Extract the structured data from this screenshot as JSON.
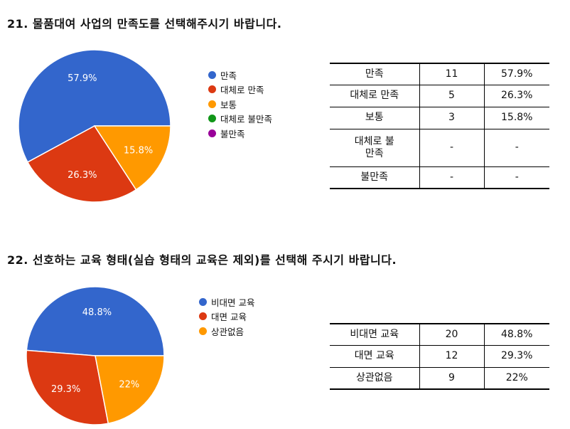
{
  "q21": {
    "title": "21. 물품대여 사업의 만족도를 선택해주시기 바랍니다.",
    "chart_data": {
      "type": "pie",
      "categories": [
        "만족",
        "대체로 만족",
        "보통",
        "대체로 불만족",
        "불만족"
      ],
      "values": [
        57.9,
        26.3,
        15.8,
        0,
        0
      ],
      "labels": [
        "57.9%",
        "26.3%",
        "15.8%",
        "",
        ""
      ],
      "colors": [
        "#3366cc",
        "#dc3912",
        "#ff9900",
        "#109618",
        "#990099"
      ],
      "legend_position": "right"
    },
    "table": [
      {
        "label": "만족",
        "count": "11",
        "pct": "57.9%"
      },
      {
        "label": "대체로 만족",
        "count": "5",
        "pct": "26.3%"
      },
      {
        "label": "보통",
        "count": "3",
        "pct": "15.8%"
      },
      {
        "label": "대체로 불만족",
        "count": "-",
        "pct": "-"
      },
      {
        "label": "불만족",
        "count": "-",
        "pct": "-"
      }
    ]
  },
  "q22": {
    "title": "22. 선호하는 교육 형태(실습 형태의 교육은 제외)를 선택해 주시기 바랍니다.",
    "chart_data": {
      "type": "pie",
      "categories": [
        "비대면 교육",
        "대면 교육",
        "상관없음"
      ],
      "values": [
        48.8,
        29.3,
        22
      ],
      "labels": [
        "48.8%",
        "29.3%",
        "22%"
      ],
      "colors": [
        "#3366cc",
        "#dc3912",
        "#ff9900"
      ],
      "legend_position": "right"
    },
    "table": [
      {
        "label": "비대면 교육",
        "count": "20",
        "pct": "48.8%"
      },
      {
        "label": "대면 교육",
        "count": "12",
        "pct": "29.3%"
      },
      {
        "label": "상관없음",
        "count": "9",
        "pct": "22%"
      }
    ]
  }
}
